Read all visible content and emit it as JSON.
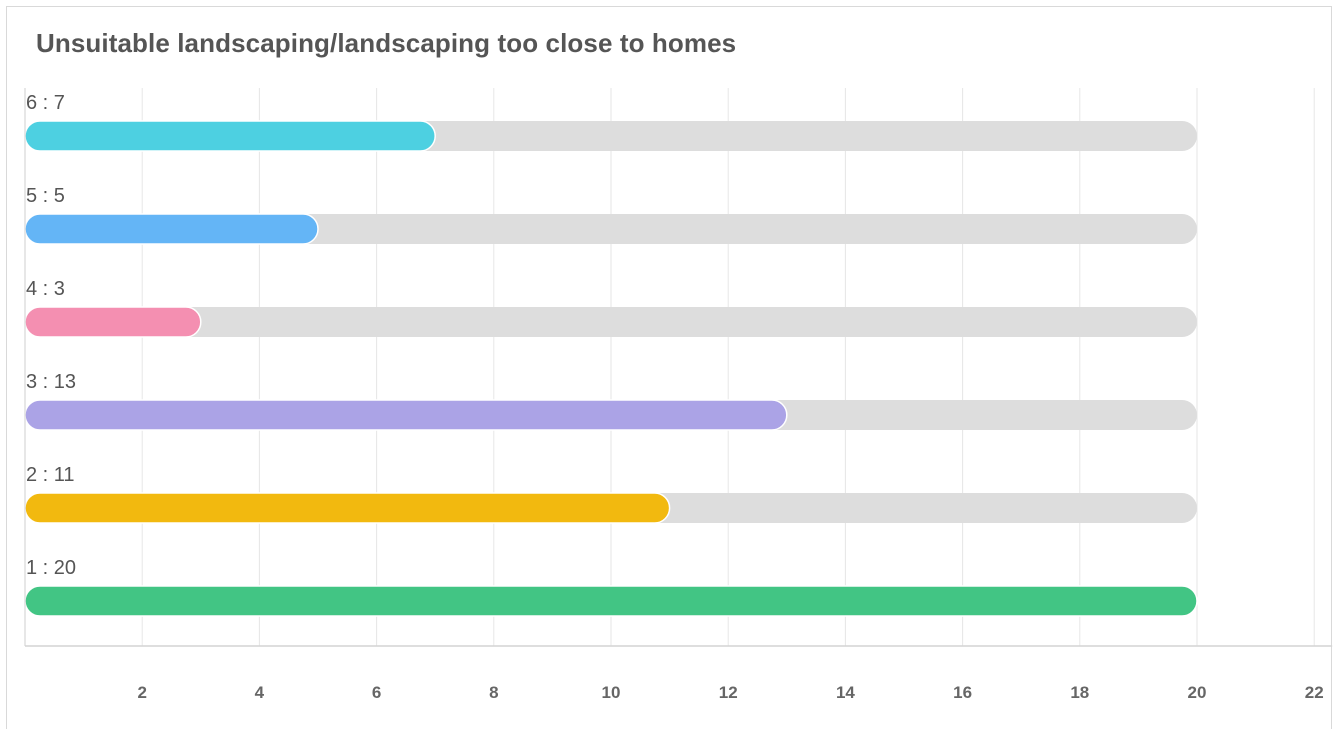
{
  "chart_data": {
    "type": "bar",
    "orientation": "horizontal",
    "title": "Unsuitable landscaping/landscaping too close to homes",
    "xlabel": "",
    "ylabel": "",
    "xlim": [
      0,
      22
    ],
    "x_ticks": [
      2,
      4,
      6,
      8,
      10,
      12,
      14,
      16,
      18,
      20,
      22
    ],
    "track_max": 20,
    "grid": true,
    "legend": "none",
    "label_separator": " : ",
    "categories": [
      "6",
      "5",
      "4",
      "3",
      "2",
      "1"
    ],
    "values": [
      7,
      5,
      3,
      13,
      11,
      20
    ],
    "colors": [
      "#4dd0e1",
      "#64b5f6",
      "#f48fb1",
      "#aba3e6",
      "#f2b90f",
      "#42c584"
    ],
    "track_color": "#dddddd",
    "grid_color": "#e6e6e6"
  }
}
